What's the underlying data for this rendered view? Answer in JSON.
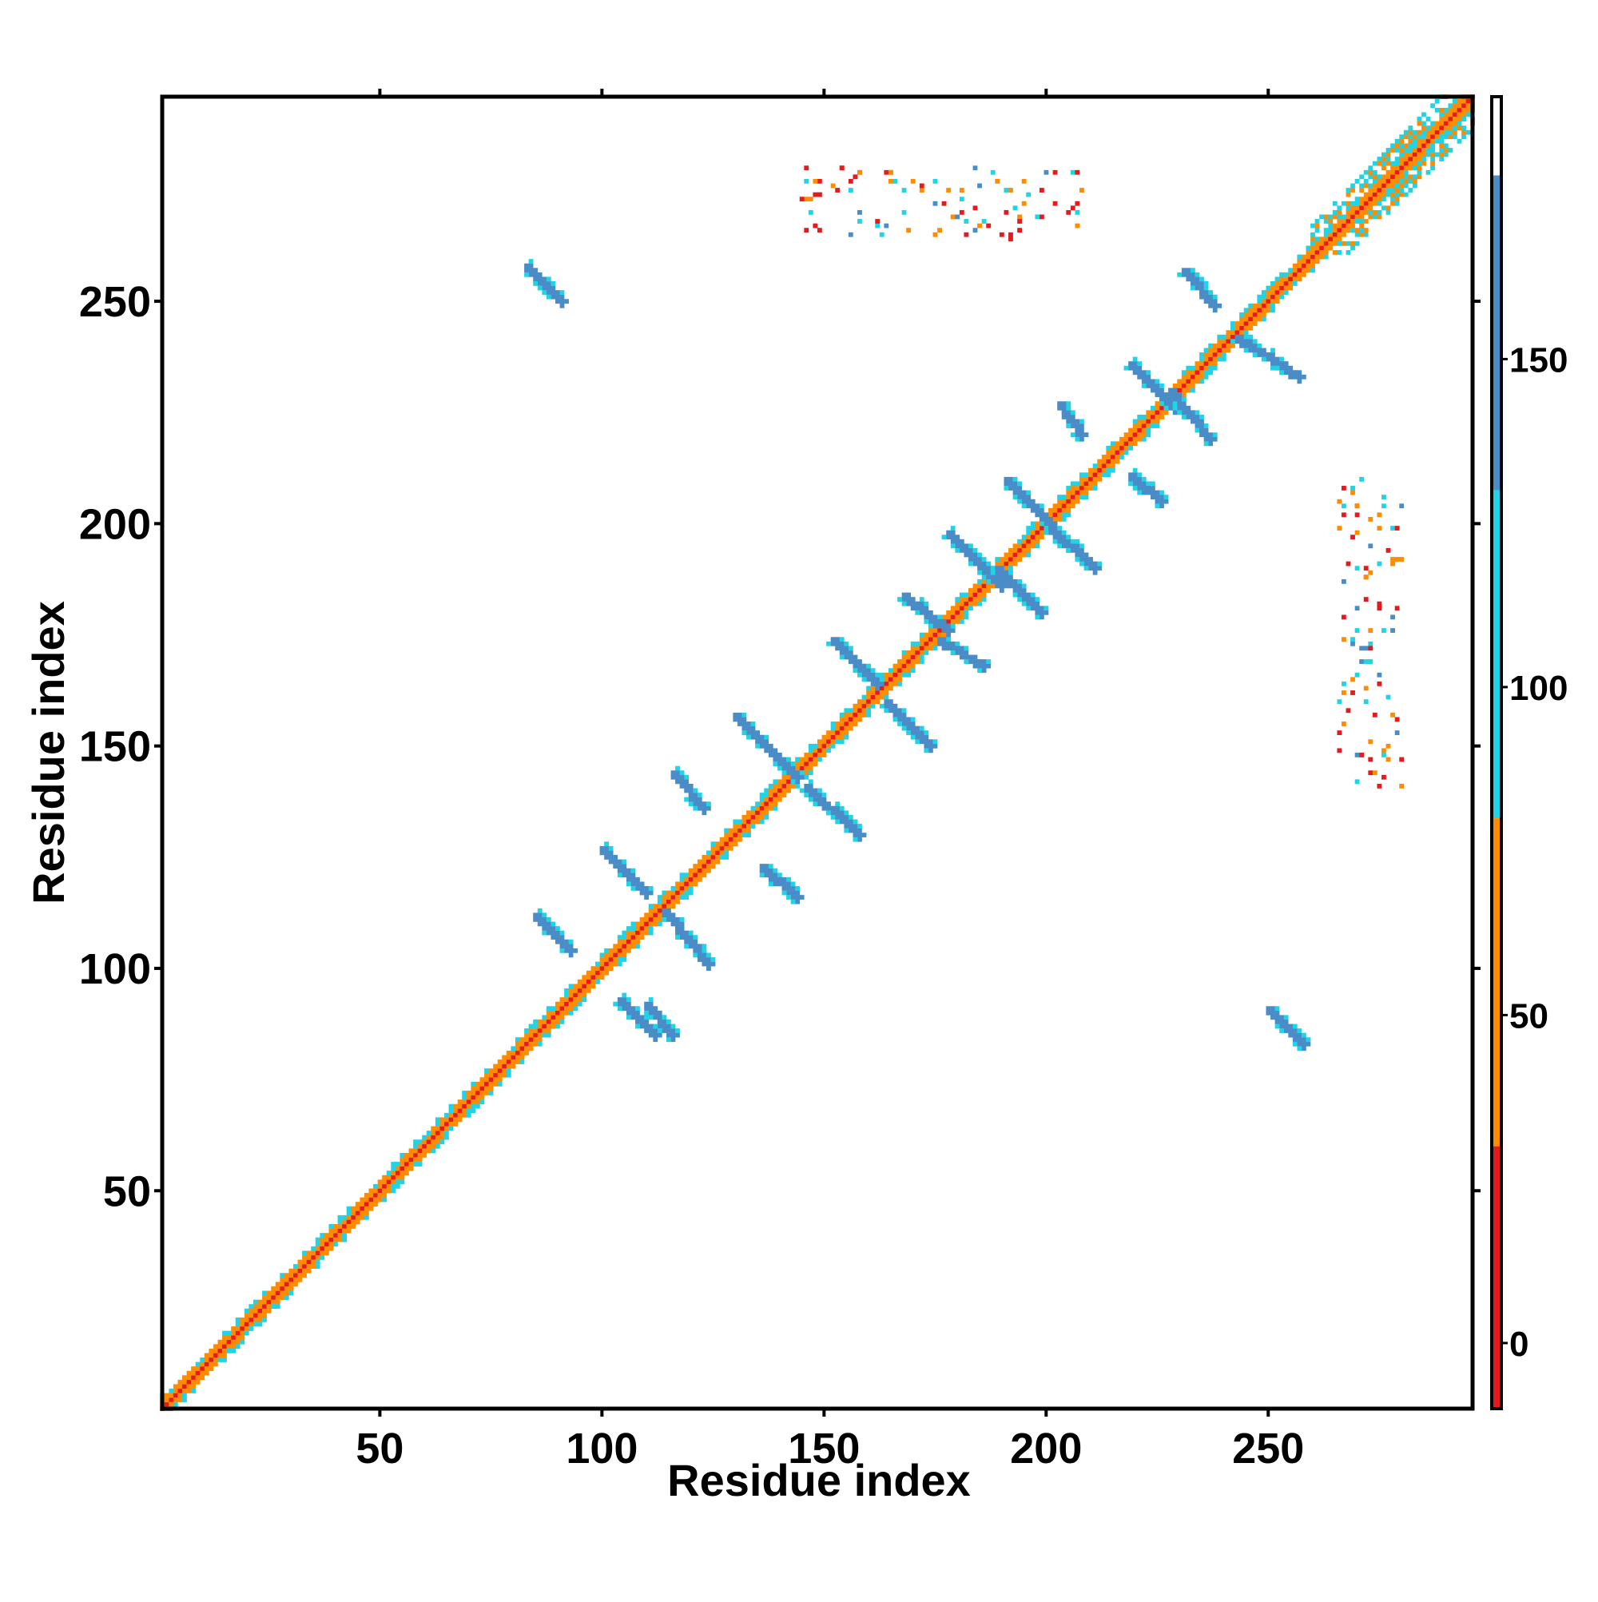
{
  "chart_data": {
    "type": "heatmap",
    "title": "",
    "xlabel": "Residue index",
    "ylabel": "Residue index",
    "xlim": [
      1,
      296
    ],
    "ylim": [
      1,
      296
    ],
    "x_ticks": [
      50,
      100,
      150,
      200,
      250
    ],
    "y_ticks": [
      50,
      100,
      150,
      200,
      250
    ],
    "colorbar": {
      "range": [
        -10,
        190
      ],
      "ticks": [
        0,
        50,
        100,
        150
      ],
      "bands": [
        {
          "from": -10,
          "to": 30,
          "color": "#e41a1c"
        },
        {
          "from": 30,
          "to": 80,
          "color": "#ff8c00"
        },
        {
          "from": 80,
          "to": 130,
          "color": "#22d3e6"
        },
        {
          "from": 130,
          "to": 178,
          "color": "#4a8cc8"
        },
        {
          "from": 178,
          "to": 190,
          "color": "#ffffff"
        }
      ]
    },
    "features": [
      {
        "kind": "diagonal",
        "from": 1,
        "to": 296,
        "value": 10,
        "band_values": [
          50,
          60,
          100
        ]
      },
      {
        "kind": "strand_pair",
        "x": [
          83,
          91
        ],
        "y": [
          258,
          250
        ],
        "value": 160
      },
      {
        "kind": "strand_pair",
        "x": [
          250,
          258
        ],
        "y": [
          91,
          83
        ],
        "value": 160
      },
      {
        "kind": "strand_pair",
        "x": [
          85,
          93
        ],
        "y": [
          112,
          104
        ],
        "value": 160
      },
      {
        "kind": "strand_pair",
        "x": [
          104,
          112
        ],
        "y": [
          93,
          85
        ],
        "value": 160
      },
      {
        "kind": "strand_pair",
        "x": [
          100,
          110
        ],
        "y": [
          127,
          117
        ],
        "value": 160
      },
      {
        "kind": "strand_pair",
        "x": [
          114,
          124
        ],
        "y": [
          113,
          101
        ],
        "value": 160
      },
      {
        "kind": "strand_pair",
        "x": [
          110,
          116
        ],
        "y": [
          92,
          85
        ],
        "value": 160
      },
      {
        "kind": "strand_pair",
        "x": [
          116,
          123
        ],
        "y": [
          144,
          136
        ],
        "value": 160
      },
      {
        "kind": "strand_pair",
        "x": [
          136,
          144
        ],
        "y": [
          123,
          116
        ],
        "value": 160
      },
      {
        "kind": "strand_pair",
        "x": [
          130,
          144
        ],
        "y": [
          157,
          143
        ],
        "value": 160
      },
      {
        "kind": "strand_pair",
        "x": [
          146,
          158
        ],
        "y": [
          141,
          130
        ],
        "value": 160
      },
      {
        "kind": "strand_pair",
        "x": [
          152,
          162
        ],
        "y": [
          174,
          164
        ],
        "value": 160
      },
      {
        "kind": "strand_pair",
        "x": [
          164,
          174
        ],
        "y": [
          160,
          150
        ],
        "value": 160
      },
      {
        "kind": "strand_pair",
        "x": [
          168,
          178
        ],
        "y": [
          184,
          176
        ],
        "value": 160
      },
      {
        "kind": "strand_pair",
        "x": [
          176,
          186
        ],
        "y": [
          174,
          168
        ],
        "value": 160
      },
      {
        "kind": "strand_pair",
        "x": [
          178,
          190
        ],
        "y": [
          198,
          186
        ],
        "value": 160
      },
      {
        "kind": "strand_pair",
        "x": [
          189,
          199
        ],
        "y": [
          190,
          180
        ],
        "value": 160
      },
      {
        "kind": "strand_pair",
        "x": [
          191,
          201
        ],
        "y": [
          210,
          200
        ],
        "value": 160
      },
      {
        "kind": "strand_pair",
        "x": [
          201,
          211
        ],
        "y": [
          199,
          190
        ],
        "value": 160
      },
      {
        "kind": "strand_pair",
        "x": [
          203,
          208
        ],
        "y": [
          227,
          220
        ],
        "value": 160
      },
      {
        "kind": "strand_pair",
        "x": [
          219,
          226
        ],
        "y": [
          211,
          205
        ],
        "value": 160
      },
      {
        "kind": "strand_pair",
        "x": [
          219,
          229
        ],
        "y": [
          236,
          226
        ],
        "value": 160
      },
      {
        "kind": "strand_pair",
        "x": [
          228,
          237
        ],
        "y": [
          230,
          219
        ],
        "value": 160
      },
      {
        "kind": "strand_pair",
        "x": [
          231,
          238
        ],
        "y": [
          257,
          249
        ],
        "value": 160
      },
      {
        "kind": "strand_pair",
        "x": [
          243,
          257
        ],
        "y": [
          242,
          233
        ],
        "value": 160
      },
      {
        "kind": "block",
        "x": [
          260,
          296
        ],
        "y": [
          260,
          296
        ],
        "value": 100
      },
      {
        "kind": "contacts",
        "x": [
          145,
          209
        ],
        "y": [
          264,
          280
        ],
        "value": 60
      },
      {
        "kind": "contacts",
        "x": [
          266,
          281
        ],
        "y": [
          140,
          210
        ],
        "value": 60
      }
    ]
  }
}
